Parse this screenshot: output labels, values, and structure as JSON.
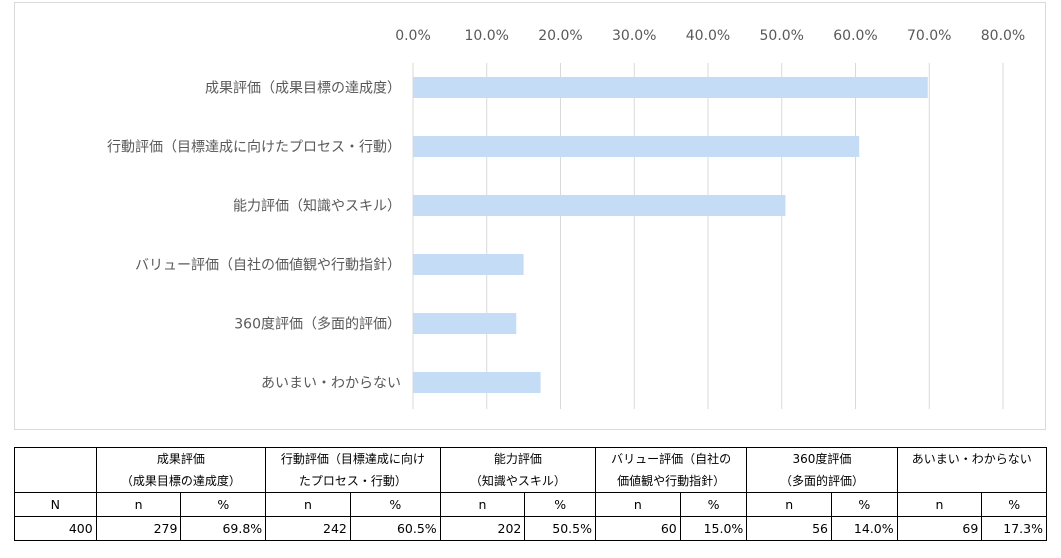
{
  "chart_data": {
    "type": "bar",
    "orientation": "horizontal",
    "categories": [
      "成果評価（成果目標の達成度）",
      "行動評価（目標達成に向けたプロセス・行動）",
      "能力評価（知識やスキル）",
      "バリュー評価（自社の価値観や行動指針）",
      "360度評価（多面的評価）",
      "あいまい・わからない"
    ],
    "values": [
      69.8,
      60.5,
      50.5,
      15.0,
      14.0,
      17.3
    ],
    "xlim": [
      0,
      80
    ],
    "xticks": [
      "0.0%",
      "10.0%",
      "20.0%",
      "30.0%",
      "40.0%",
      "50.0%",
      "60.0%",
      "70.0%",
      "80.0%"
    ],
    "x_axis_position": "top",
    "grid": true,
    "legend": "none",
    "bar_color": "#c5dcf7"
  },
  "table": {
    "header_categories": [
      "成果評価\n（成果目標の達成度）",
      "行動評価（目標達成に向け\nたプロセス・行動）",
      "能力評価\n（知識やスキル）",
      "バリュー評価（自社の\n価値観や行動指針）",
      "360度評価\n（多面的評価）",
      "あいまい・わからない"
    ],
    "n_header": "N",
    "sub_n": "n",
    "sub_pct": "%",
    "total_n": "400",
    "counts": [
      "279",
      "242",
      "202",
      "60",
      "56",
      "69"
    ],
    "percents": [
      "69.8%",
      "60.5%",
      "50.5%",
      "15.0%",
      "14.0%",
      "17.3%"
    ]
  }
}
